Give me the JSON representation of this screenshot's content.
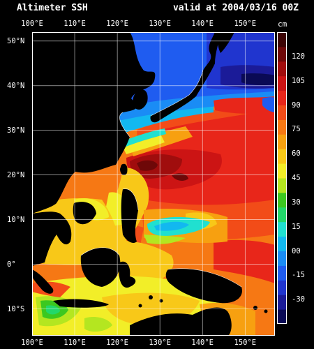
{
  "header": {
    "title": "Altimeter SSH",
    "valid": "valid at 2004/03/16 00Z"
  },
  "axes": {
    "lon_labels": [
      "100°E",
      "110°E",
      "120°E",
      "130°E",
      "140°E",
      "150°E"
    ],
    "lon_values": [
      100,
      110,
      120,
      130,
      140,
      150
    ],
    "lat_labels": [
      "50°N",
      "40°N",
      "30°N",
      "20°N",
      "10°N",
      "0°",
      "10°S"
    ],
    "lat_values": [
      50,
      40,
      30,
      20,
      10,
      0,
      -10
    ],
    "lon_range": [
      100,
      157
    ],
    "lat_range": [
      -16,
      52
    ]
  },
  "colorbar": {
    "unit": "cm",
    "tick_labels": [
      "120",
      "105",
      "90",
      "75",
      "60",
      "45",
      "30",
      "15",
      "00",
      "-15",
      "-30"
    ],
    "tick_values": [
      120,
      105,
      90,
      75,
      60,
      45,
      30,
      15,
      0,
      -15,
      -30
    ],
    "range": [
      -45,
      135
    ],
    "colors": [
      "#0a0a55",
      "#1b1b98",
      "#2035cf",
      "#1f5cf0",
      "#1a8cf5",
      "#12b8f0",
      "#20e0d0",
      "#22d86a",
      "#3cc820",
      "#b4e620",
      "#f2ee28",
      "#f8c818",
      "#f7a010",
      "#f67814",
      "#f24c18",
      "#e8261a",
      "#cc1414",
      "#a00d0d",
      "#6e0808",
      "#3c0404"
    ]
  },
  "map_legend": {
    "fields": [
      "sea-surface-height",
      "land",
      "coastlines",
      "graticule"
    ],
    "land_color": "#000000",
    "grid_color": "#ffffff"
  }
}
